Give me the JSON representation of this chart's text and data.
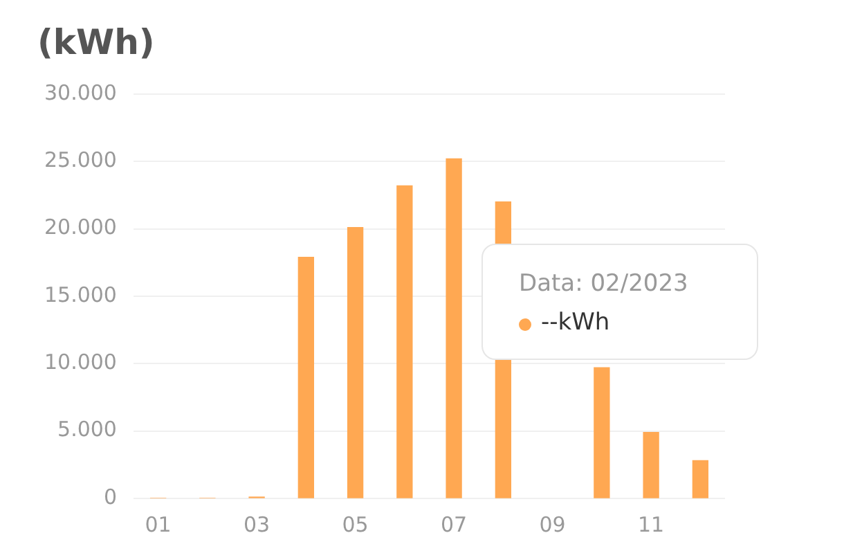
{
  "chart_data": {
    "type": "bar",
    "ylabel": "(kWh)",
    "categories": [
      "01",
      null,
      "03",
      null,
      "05",
      null,
      "07",
      null,
      "09",
      null,
      "11",
      null
    ],
    "values": [
      0,
      0,
      100,
      17900,
      20100,
      23200,
      25200,
      22000,
      null,
      9700,
      4900,
      2800
    ],
    "color": "#ffa852",
    "ylim": [
      0,
      30000
    ],
    "yticks": [
      {
        "value": 0,
        "label": "0"
      },
      {
        "value": 5000,
        "label": "5.000"
      },
      {
        "value": 10000,
        "label": "10.000"
      },
      {
        "value": 15000,
        "label": "15.000"
      },
      {
        "value": 20000,
        "label": "20.000"
      },
      {
        "value": 25000,
        "label": "25.000"
      },
      {
        "value": 30000,
        "label": "30.000"
      }
    ],
    "grid": "y",
    "legend": false,
    "annotations": [
      "Data: 02/2023",
      "--kWh"
    ]
  }
}
